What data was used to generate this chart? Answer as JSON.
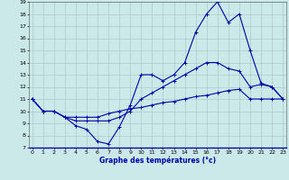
{
  "title": "Graphe des températures (°c)",
  "bg_color": "#cce9e9",
  "grid_color": "#aacccc",
  "line_color": "#0000aa",
  "xlim": [
    -0.3,
    23.3
  ],
  "ylim": [
    7,
    19
  ],
  "xticks": [
    0,
    1,
    2,
    3,
    4,
    5,
    6,
    7,
    8,
    9,
    10,
    11,
    12,
    13,
    14,
    15,
    16,
    17,
    18,
    19,
    20,
    21,
    22,
    23
  ],
  "yticks": [
    7,
    8,
    9,
    10,
    11,
    12,
    13,
    14,
    15,
    16,
    17,
    18,
    19
  ],
  "line1_x": [
    0,
    1,
    2,
    3,
    4,
    5,
    6,
    7,
    8,
    9,
    10,
    11,
    12,
    13,
    14,
    15,
    16,
    17,
    18,
    19,
    20,
    21,
    22,
    23
  ],
  "line1_y": [
    11.0,
    10.0,
    10.0,
    9.5,
    8.8,
    8.5,
    7.5,
    7.3,
    8.7,
    10.5,
    13.0,
    13.0,
    12.5,
    13.0,
    14.0,
    16.5,
    18.0,
    19.0,
    17.3,
    18.0,
    15.0,
    12.3,
    12.0,
    11.0
  ],
  "line2_x": [
    0,
    1,
    2,
    3,
    4,
    5,
    6,
    7,
    8,
    9,
    10,
    11,
    12,
    13,
    14,
    15,
    16,
    17,
    18,
    19,
    20,
    21,
    22,
    23
  ],
  "line2_y": [
    11.0,
    10.0,
    10.0,
    9.5,
    9.2,
    9.2,
    9.2,
    9.2,
    9.5,
    10.0,
    11.0,
    11.5,
    12.0,
    12.5,
    13.0,
    13.5,
    14.0,
    14.0,
    13.5,
    13.3,
    12.0,
    12.2,
    12.0,
    11.0
  ],
  "line3_x": [
    0,
    1,
    2,
    3,
    4,
    5,
    6,
    7,
    8,
    9,
    10,
    11,
    12,
    13,
    14,
    15,
    16,
    17,
    18,
    19,
    20,
    21,
    22,
    23
  ],
  "line3_y": [
    11.0,
    10.0,
    10.0,
    9.5,
    9.5,
    9.5,
    9.5,
    9.8,
    10.0,
    10.2,
    10.3,
    10.5,
    10.7,
    10.8,
    11.0,
    11.2,
    11.3,
    11.5,
    11.7,
    11.8,
    11.0,
    11.0,
    11.0,
    11.0
  ]
}
